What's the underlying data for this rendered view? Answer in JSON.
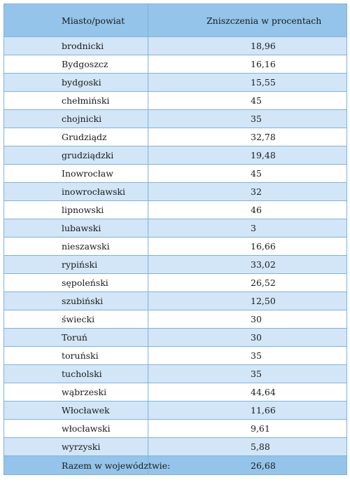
{
  "header": {
    "col1": "Miasto/powiat",
    "col2": "Zniszczenia w procentach"
  },
  "rows": [
    {
      "name": "brodnicki",
      "value": "18,96"
    },
    {
      "name": "Bydgoszcz",
      "value": "16,16"
    },
    {
      "name": "bydgoski",
      "value": "15,55"
    },
    {
      "name": "chełmiński",
      "value": "45"
    },
    {
      "name": "chojnicki",
      "value": "35"
    },
    {
      "name": "Grudziądz",
      "value": "32,78"
    },
    {
      "name": "grudziądzki",
      "value": "19,48"
    },
    {
      "name": "Inowrocław",
      "value": "45"
    },
    {
      "name": "inowrocławski",
      "value": "32"
    },
    {
      "name": "lipnowski",
      "value": "46"
    },
    {
      "name": "lubawski",
      "value": "3"
    },
    {
      "name": "nieszawski",
      "value": "16,66"
    },
    {
      "name": "rypiński",
      "value": "33,02"
    },
    {
      "name": "sępoleński",
      "value": "26,52"
    },
    {
      "name": "szubiński",
      "value": "12,50"
    },
    {
      "name": "świecki",
      "value": "30"
    },
    {
      "name": "Toruń",
      "value": "30"
    },
    {
      "name": "toruński",
      "value": "35"
    },
    {
      "name": "tucholski",
      "value": "35"
    },
    {
      "name": "wąbrzeski",
      "value": "44,64"
    },
    {
      "name": "Włocławek",
      "value": "11,66"
    },
    {
      "name": "włocławski",
      "value": "9,61"
    },
    {
      "name": "wyrzyski",
      "value": "5,88"
    }
  ],
  "footer": {
    "name": "Razem w województwie:",
    "value": "26,68"
  },
  "colors": {
    "header_bg": "#94c4ea",
    "stripe_bg": "#d2e6f7",
    "border": "#7fb2dd"
  }
}
